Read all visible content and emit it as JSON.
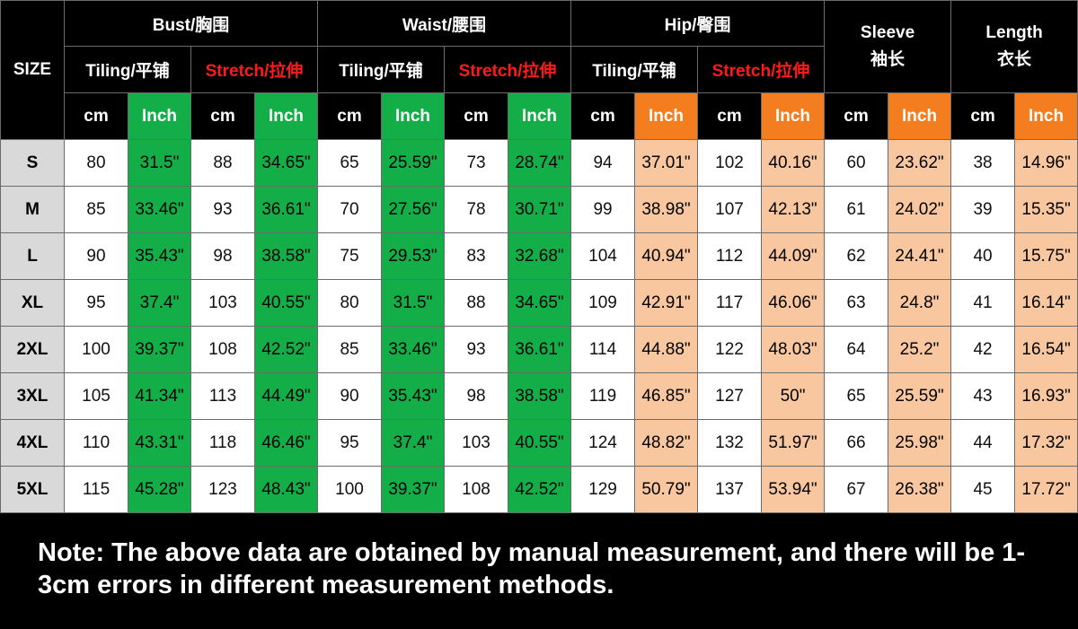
{
  "header": {
    "size": "SIZE",
    "groups": [
      {
        "title": "Bust/胸围",
        "tiling": "Tiling/平铺",
        "stretch": "Stretch/拉伸"
      },
      {
        "title": "Waist/腰围",
        "tiling": "Tiling/平铺",
        "stretch": "Stretch/拉伸"
      },
      {
        "title": "Hip/臀围",
        "tiling": "Tiling/平铺",
        "stretch": "Stretch/拉伸"
      }
    ],
    "sleeve": {
      "en": "Sleeve",
      "cn": "袖长"
    },
    "length": {
      "en": "Length",
      "cn": "衣长"
    },
    "cm": "cm",
    "inch": "Inch"
  },
  "colors": {
    "inch_green": "#13ae47",
    "inch_orange": "#f47d20",
    "peach": "#f8c79f",
    "size_gray": "#d9d9d9",
    "stretch_red": "#ff1a1a"
  },
  "rows": [
    {
      "size": "S",
      "cells": [
        "80",
        "31.5\"",
        "88",
        "34.65\"",
        "65",
        "25.59\"",
        "73",
        "28.74\"",
        "94",
        "37.01\"",
        "102",
        "40.16\"",
        "60",
        "23.62\"",
        "38",
        "14.96\""
      ]
    },
    {
      "size": "M",
      "cells": [
        "85",
        "33.46\"",
        "93",
        "36.61\"",
        "70",
        "27.56\"",
        "78",
        "30.71\"",
        "99",
        "38.98\"",
        "107",
        "42.13\"",
        "61",
        "24.02\"",
        "39",
        "15.35\""
      ]
    },
    {
      "size": "L",
      "cells": [
        "90",
        "35.43\"",
        "98",
        "38.58\"",
        "75",
        "29.53\"",
        "83",
        "32.68\"",
        "104",
        "40.94\"",
        "112",
        "44.09\"",
        "62",
        "24.41\"",
        "40",
        "15.75\""
      ]
    },
    {
      "size": "XL",
      "cells": [
        "95",
        "37.4\"",
        "103",
        "40.55\"",
        "80",
        "31.5\"",
        "88",
        "34.65\"",
        "109",
        "42.91\"",
        "117",
        "46.06\"",
        "63",
        "24.8\"",
        "41",
        "16.14\""
      ]
    },
    {
      "size": "2XL",
      "cells": [
        "100",
        "39.37\"",
        "108",
        "42.52\"",
        "85",
        "33.46\"",
        "93",
        "36.61\"",
        "114",
        "44.88\"",
        "122",
        "48.03\"",
        "64",
        "25.2\"",
        "42",
        "16.54\""
      ]
    },
    {
      "size": "3XL",
      "cells": [
        "105",
        "41.34\"",
        "113",
        "44.49\"",
        "90",
        "35.43\"",
        "98",
        "38.58\"",
        "119",
        "46.85\"",
        "127",
        "50\"",
        "65",
        "25.59\"",
        "43",
        "16.93\""
      ]
    },
    {
      "size": "4XL",
      "cells": [
        "110",
        "43.31\"",
        "118",
        "46.46\"",
        "95",
        "37.4\"",
        "103",
        "40.55\"",
        "124",
        "48.82\"",
        "132",
        "51.97\"",
        "66",
        "25.98\"",
        "44",
        "17.32\""
      ]
    },
    {
      "size": "5XL",
      "cells": [
        "115",
        "45.28\"",
        "123",
        "48.43\"",
        "100",
        "39.37\"",
        "108",
        "42.52\"",
        "129",
        "50.79\"",
        "137",
        "53.94\"",
        "67",
        "26.38\"",
        "45",
        "17.72\""
      ]
    }
  ],
  "note": "Note: The above data are obtained by manual measurement, and there will be 1-3cm errors in different measurement methods."
}
